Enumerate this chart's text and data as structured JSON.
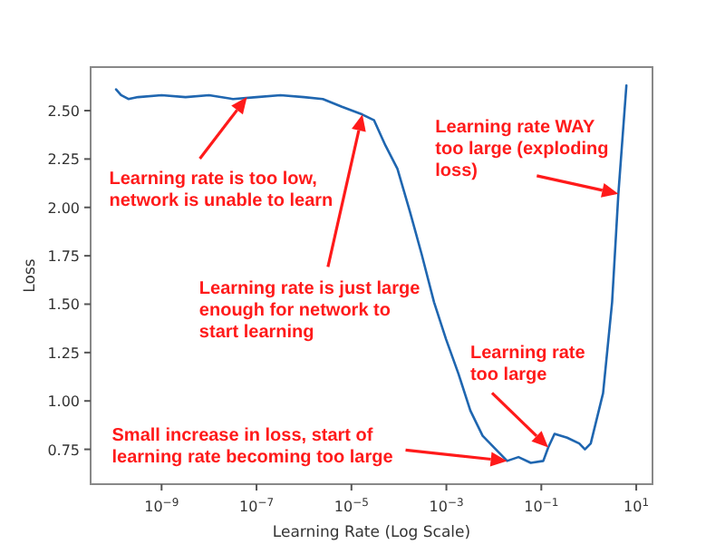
{
  "chart_data": {
    "type": "line",
    "xlabel": "Learning Rate (Log Scale)",
    "ylabel": "Loss",
    "log": "x",
    "grid": false,
    "xlim": [
      3.2e-11,
      22
    ],
    "ylim": [
      0.57,
      2.725
    ],
    "xticks": [
      {
        "value": 1e-09,
        "label": "10$^{−9}$"
      },
      {
        "value": 1e-07,
        "label": "10$^{−7}$"
      },
      {
        "value": 1e-05,
        "label": "10$^{−5}$"
      },
      {
        "value": 0.001,
        "label": "10$^{−3}$"
      },
      {
        "value": 0.1,
        "label": "10$^{−1}$"
      },
      {
        "value": 10,
        "label": "10$^{1}$"
      }
    ],
    "yticks": [
      {
        "value": 0.75,
        "label": "0.75"
      },
      {
        "value": 1,
        "label": "1.00"
      },
      {
        "value": 1.25,
        "label": "1.25"
      },
      {
        "value": 1.5,
        "label": "1.50"
      },
      {
        "value": 1.75,
        "label": "1.75"
      },
      {
        "value": 2,
        "label": "2.00"
      },
      {
        "value": 2.25,
        "label": "2.25"
      },
      {
        "value": 2.5,
        "label": "2.50"
      }
    ],
    "series": [
      {
        "color": "#1f66b0",
        "x": [
          1.1e-10,
          1.4e-10,
          2e-10,
          3.2e-10,
          1e-09,
          3.2e-09,
          1e-08,
          3.2e-08,
          1e-07,
          3.2e-07,
          1e-06,
          2.5e-06,
          6.3e-06,
          1.7e-05,
          3e-05,
          5.2e-05,
          9.3e-05,
          0.00017,
          0.0003,
          0.00055,
          0.00098,
          0.0018,
          0.0032,
          0.0058,
          0.01,
          0.019,
          0.033,
          0.06,
          0.11,
          0.14,
          0.19,
          0.35,
          0.63,
          0.83,
          1.1,
          2.0,
          3.1,
          4.2,
          6.2
        ],
        "values": [
          2.61,
          2.58,
          2.56,
          2.57,
          2.58,
          2.57,
          2.58,
          2.56,
          2.57,
          2.58,
          2.57,
          2.56,
          2.52,
          2.48,
          2.45,
          2.32,
          2.2,
          1.98,
          1.76,
          1.51,
          1.32,
          1.14,
          0.95,
          0.82,
          0.76,
          0.69,
          0.71,
          0.68,
          0.69,
          0.76,
          0.83,
          0.81,
          0.78,
          0.75,
          0.78,
          1.04,
          1.51,
          2.07,
          2.63
        ]
      }
    ],
    "annotations": [
      {
        "text": "Learning rate is too low,\nnetwork is unable to learn",
        "x": 6.3e-08,
        "y": 2.57
      },
      {
        "text": "Learning rate is just large\nenough for network to\nstart learning",
        "x": 1.7e-05,
        "y": 2.48
      },
      {
        "text": "Small increase in loss, start of\nlearning rate becoming too large",
        "x": 0.019,
        "y": 0.69
      },
      {
        "text": "Learning rate\ntoo large",
        "x": 0.14,
        "y": 0.76
      },
      {
        "text": "Learning rate WAY\ntoo large (exploding\nloss)",
        "x": 4.2,
        "y": 2.07
      }
    ]
  }
}
